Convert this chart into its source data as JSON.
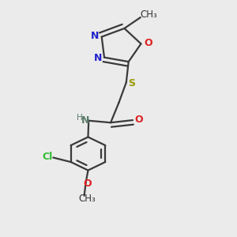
{
  "background_color": "#ebebeb",
  "bond_color": "#3a3a3a",
  "bond_width": 1.6,
  "dbo": 0.018,
  "figsize": [
    3.0,
    3.0
  ],
  "dpi": 100,
  "xlim": [
    0.1,
    0.9
  ],
  "ylim": [
    0.02,
    0.98
  ]
}
